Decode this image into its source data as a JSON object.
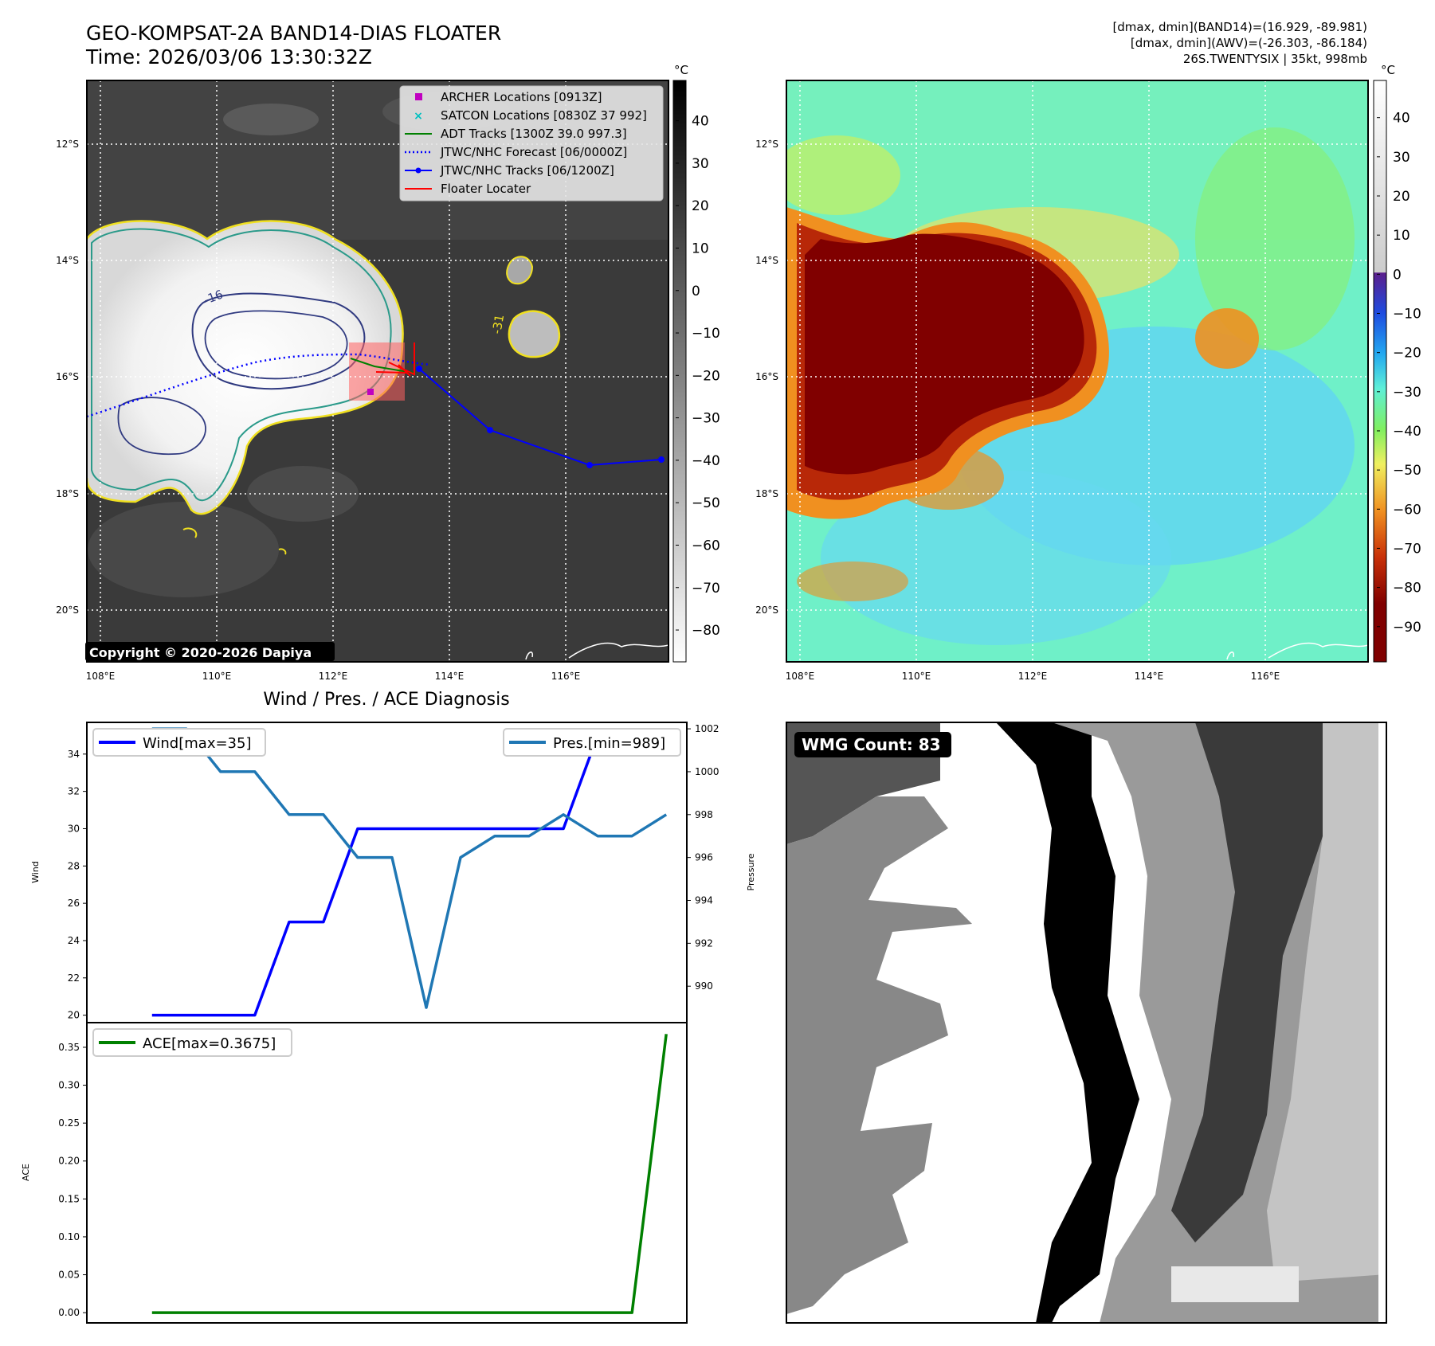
{
  "header": {
    "title": "GEO-KOMPSAT-2A BAND14-DIAS FLOATER",
    "time": "Time: 2026/03/06 13:30:32Z",
    "dmax_band14": "[dmax, dmin](BAND14)=(16.929, -89.981)",
    "dmax_awv": "[dmax, dmin](AWV)=(-26.303, -86.184)",
    "storm_info": "26S.TWENTYSIX | 35kt, 998mb"
  },
  "map": {
    "lat_ticks": [
      "12°S",
      "14°S",
      "16°S",
      "18°S",
      "20°S"
    ],
    "lon_ticks": [
      "108°E",
      "110°E",
      "112°E",
      "114°E",
      "116°E"
    ],
    "copyright": "Copyright © 2020-2026 Dapiya",
    "contour_label_1": "-16",
    "contour_label_2": "-31",
    "legend": [
      {
        "label": "ARCHER Locations [0913Z]",
        "color": "#c000c0",
        "icon": "square-marker"
      },
      {
        "label": "SATCON Locations [0830Z 37 992]",
        "color": "#00c0c0",
        "icon": "x-marker"
      },
      {
        "label": "ADT Tracks [1300Z 39.0 997.3]",
        "color": "#008000",
        "icon": "solid-line"
      },
      {
        "label": "JTWC/NHC Forecast [06/0000Z]",
        "color": "#0000ff",
        "icon": "dotted-line"
      },
      {
        "label": "JTWC/NHC Tracks [06/1200Z]",
        "color": "#0000ff",
        "icon": "line-with-dots"
      },
      {
        "label": "Floater Locater",
        "color": "#ff0000",
        "icon": "solid-line"
      }
    ]
  },
  "colorbar_ir": {
    "unit": "°C",
    "ticks": [
      "40",
      "30",
      "20",
      "10",
      "0",
      "−10",
      "−20",
      "−30",
      "−40",
      "−50",
      "−60",
      "−70",
      "−80"
    ]
  },
  "colorbar_wv": {
    "unit": "°C",
    "ticks": [
      "40",
      "30",
      "20",
      "10",
      "0",
      "−10",
      "−20",
      "−30",
      "−40",
      "−50",
      "−60",
      "−70",
      "−80",
      "−90"
    ]
  },
  "wmg": {
    "label": "WMG Count: 83"
  },
  "chart_data": [
    {
      "type": "line",
      "title": "Wind / Pres. / ACE Diagnosis",
      "ylabel": "Wind",
      "ylabel_right": "Pressure",
      "ylim": [
        19.6,
        35.7
      ],
      "ylim_right": [
        988.3,
        1002.3
      ],
      "yticks": [
        "20",
        "22",
        "24",
        "26",
        "28",
        "30",
        "32",
        "34"
      ],
      "yticks_right": [
        "990",
        "992",
        "994",
        "996",
        "998",
        "1000",
        "1002"
      ],
      "x": [
        0,
        1,
        2,
        3,
        4,
        5,
        6,
        7,
        8,
        9,
        10,
        11,
        12,
        13,
        14,
        15
      ],
      "series": [
        {
          "name": "Wind[max=35]",
          "axis": "left",
          "color": "#0000ff",
          "values": [
            20,
            20,
            20,
            20,
            25,
            25,
            30,
            30,
            30,
            30,
            30,
            30,
            30,
            35,
            35,
            35
          ]
        },
        {
          "name": "Pres.[min=989]",
          "axis": "right",
          "color": "#1f77b4",
          "values": [
            1002,
            1002,
            1000,
            1000,
            998,
            998,
            996,
            996,
            989,
            996,
            997,
            997,
            998,
            997,
            997,
            998
          ]
        }
      ]
    },
    {
      "type": "line",
      "ylabel": "ACE",
      "ylim": [
        -0.0135,
        0.3825
      ],
      "yticks": [
        "0.00",
        "0.05",
        "0.10",
        "0.15",
        "0.20",
        "0.25",
        "0.30",
        "0.35"
      ],
      "x": [
        0,
        1,
        2,
        3,
        4,
        5,
        6,
        7,
        8,
        9,
        10,
        11,
        12,
        13,
        14,
        15
      ],
      "series": [
        {
          "name": "ACE[max=0.3675]",
          "color": "#008000",
          "values": [
            0,
            0,
            0,
            0,
            0,
            0,
            0,
            0,
            0,
            0,
            0,
            0,
            0,
            0,
            0,
            0.3675
          ]
        }
      ]
    }
  ]
}
